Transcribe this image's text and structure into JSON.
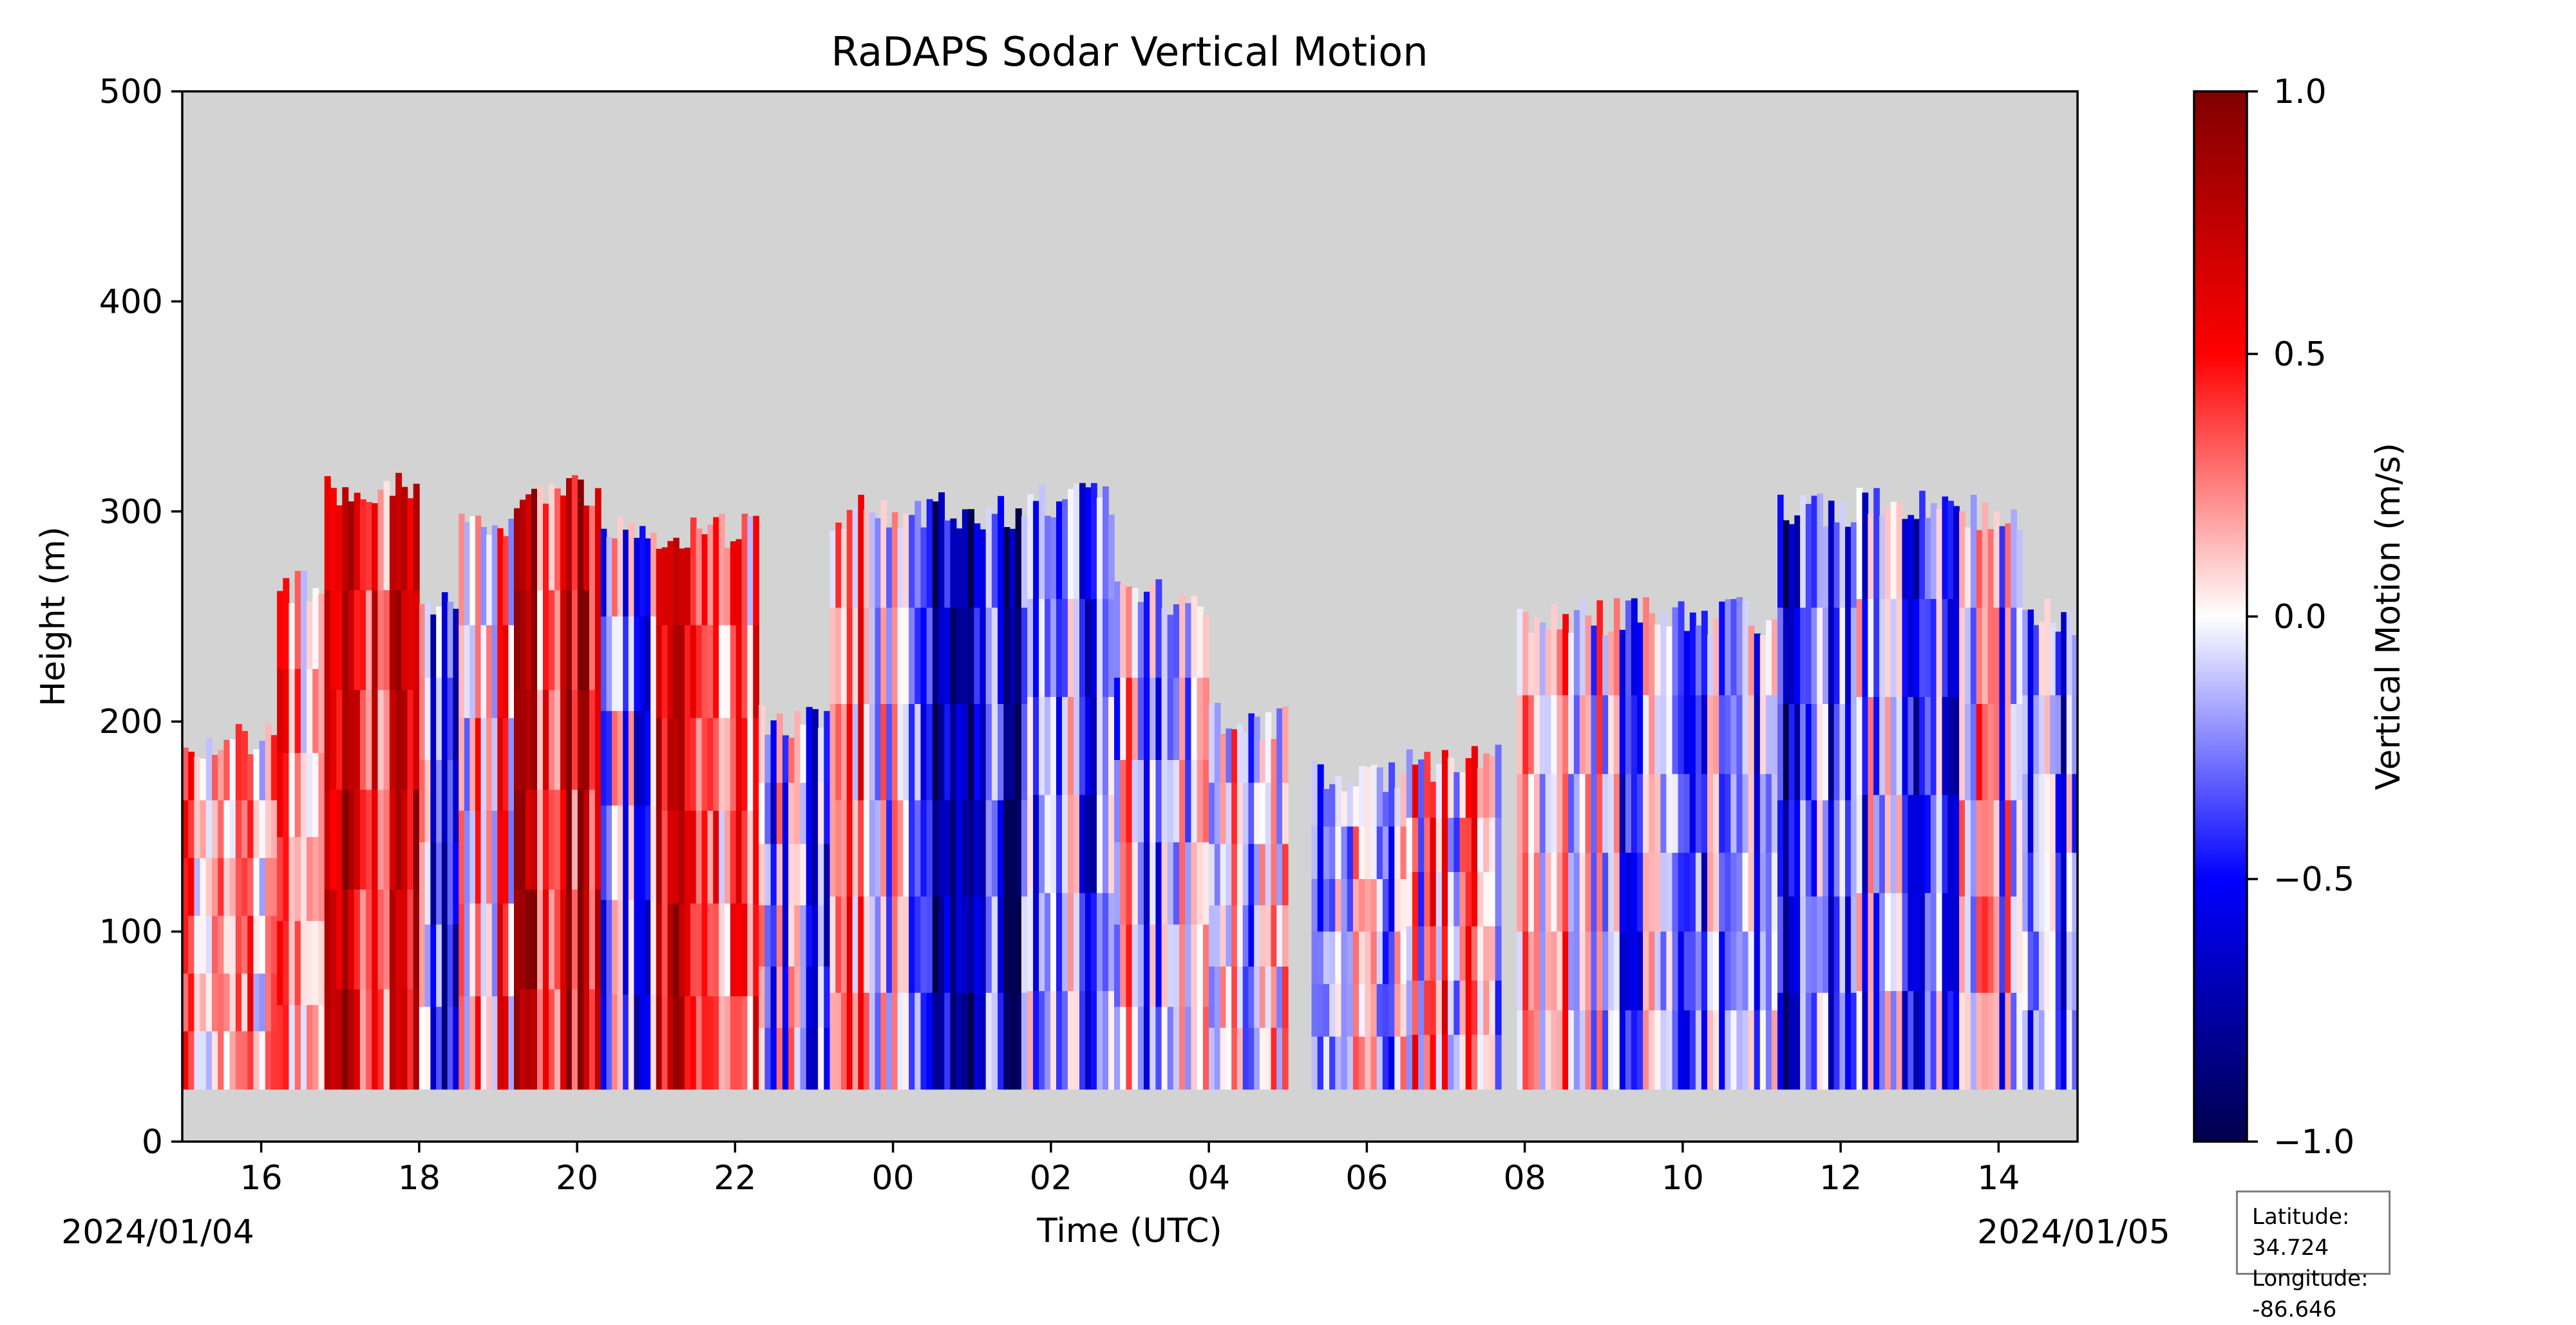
{
  "chart_data": {
    "type": "heatmap",
    "title": "RaDAPS Sodar Vertical Motion",
    "xlabel": "Time (UTC)",
    "ylabel": "Height (m)",
    "x_ticks": [
      "16",
      "18",
      "20",
      "22",
      "00",
      "02",
      "04",
      "06",
      "08",
      "10",
      "12",
      "14"
    ],
    "x_tick_hours_since_2024_01_04_00": [
      16,
      18,
      20,
      22,
      24,
      26,
      28,
      30,
      32,
      34,
      36,
      38
    ],
    "xlim_hours": [
      15,
      39
    ],
    "date_start": "2024/01/04",
    "date_end": "2024/01/05",
    "y_ticks": [
      0,
      100,
      200,
      300,
      400,
      500
    ],
    "ylim": [
      0,
      500
    ],
    "colorbar": {
      "label": "Vertical Motion (m/s)",
      "ticks": [
        "1.0",
        "0.5",
        "0.0",
        "−0.5",
        "−1.0"
      ],
      "tick_values": [
        1.0,
        0.5,
        0.0,
        -0.5,
        -1.0
      ],
      "range": [
        -1.0,
        1.0
      ],
      "colormap": "seismic"
    },
    "background_color": "#d3d3d3",
    "data_floor_m": 25,
    "segments": [
      {
        "start": 15.0,
        "end": 16.2,
        "top_m": 190,
        "mean_w": 0.25
      },
      {
        "start": 16.2,
        "end": 16.8,
        "top_m": 265,
        "mean_w": 0.35
      },
      {
        "start": 16.8,
        "end": 18.0,
        "top_m": 310,
        "mean_w": 0.5
      },
      {
        "start": 18.0,
        "end": 18.5,
        "top_m": 260,
        "mean_w": -0.3
      },
      {
        "start": 18.5,
        "end": 19.2,
        "top_m": 290,
        "mean_w": 0.1
      },
      {
        "start": 19.2,
        "end": 20.3,
        "top_m": 310,
        "mean_w": 0.6
      },
      {
        "start": 20.3,
        "end": 21.0,
        "top_m": 295,
        "mean_w": -0.3
      },
      {
        "start": 21.0,
        "end": 22.3,
        "top_m": 290,
        "mean_w": 0.45
      },
      {
        "start": 22.3,
        "end": 23.2,
        "top_m": 200,
        "mean_w": -0.2
      },
      {
        "start": 23.2,
        "end": 24.2,
        "top_m": 300,
        "mean_w": 0.1
      },
      {
        "start": 24.2,
        "end": 25.7,
        "top_m": 300,
        "mean_w": -0.6
      },
      {
        "start": 25.7,
        "end": 26.8,
        "top_m": 305,
        "mean_w": -0.2
      },
      {
        "start": 26.8,
        "end": 28.0,
        "top_m": 260,
        "mean_w": -0.15
      },
      {
        "start": 28.0,
        "end": 29.0,
        "top_m": 200,
        "mean_w": -0.1
      },
      {
        "start": 29.3,
        "end": 30.5,
        "top_m": 175,
        "mean_w": -0.05
      },
      {
        "start": 30.5,
        "end": 31.7,
        "top_m": 180,
        "mean_w": 0.1
      },
      {
        "start": 31.9,
        "end": 33.2,
        "top_m": 250,
        "mean_w": 0.05
      },
      {
        "start": 33.2,
        "end": 35.2,
        "top_m": 250,
        "mean_w": -0.2
      },
      {
        "start": 35.2,
        "end": 36.2,
        "top_m": 300,
        "mean_w": -0.4
      },
      {
        "start": 36.2,
        "end": 37.5,
        "top_m": 305,
        "mean_w": -0.3
      },
      {
        "start": 37.5,
        "end": 38.3,
        "top_m": 300,
        "mean_w": -0.1
      },
      {
        "start": 38.3,
        "end": 39.0,
        "top_m": 250,
        "mean_w": -0.35
      }
    ]
  },
  "location": {
    "latitude_label": "Latitude: 34.724",
    "longitude_label": "Longitude: -86.646"
  }
}
